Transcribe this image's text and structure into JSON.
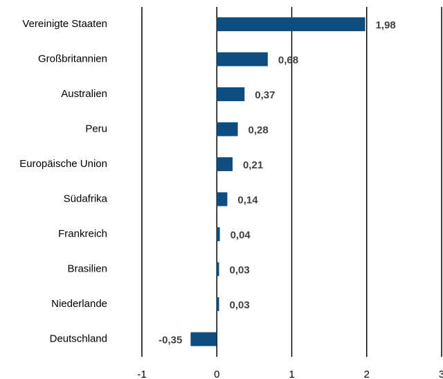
{
  "chart_data": {
    "type": "hbar",
    "categories": [
      "Vereinigte Staaten",
      "Großbritannien",
      "Australien",
      "Peru",
      "Europäische Union",
      "Südafrika",
      "Frankreich",
      "Brasilien",
      "Niederlande",
      "Deutschland"
    ],
    "values": [
      1.98,
      0.68,
      0.37,
      0.28,
      0.21,
      0.14,
      0.04,
      0.03,
      0.03,
      -0.35
    ],
    "value_labels": [
      "1,98",
      "0,68",
      "0,37",
      "0,28",
      "0,21",
      "0,14",
      "0,04",
      "0,03",
      "0,03",
      "-0,35"
    ],
    "color": "#0e4d80",
    "xlim": [
      -1,
      3
    ],
    "xticks": [
      -1,
      0,
      1,
      2,
      3
    ],
    "grid": true
  }
}
